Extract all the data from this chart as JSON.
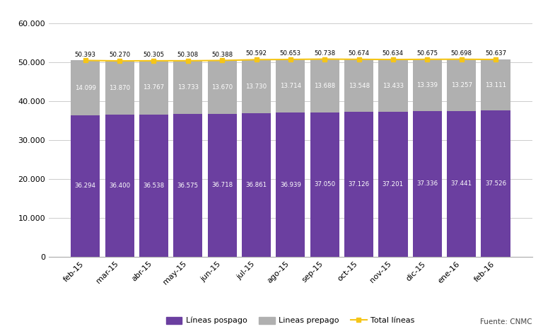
{
  "categories": [
    "feb-15",
    "mar-15",
    "abr-15",
    "may-15",
    "jun-15",
    "jul-15",
    "ago-15",
    "sep-15",
    "oct-15",
    "nov-15",
    "dic-15",
    "ene-16",
    "feb-16"
  ],
  "pospago": [
    36294,
    36400,
    36538,
    36575,
    36718,
    36861,
    36939,
    37050,
    37126,
    37201,
    37336,
    37441,
    37526
  ],
  "prepago": [
    14099,
    13870,
    13767,
    13733,
    13670,
    13730,
    13714,
    13688,
    13548,
    13433,
    13339,
    13257,
    13111
  ],
  "total": [
    50393,
    50270,
    50305,
    50308,
    50388,
    50592,
    50653,
    50738,
    50674,
    50634,
    50675,
    50698,
    50637
  ],
  "pospago_labels": [
    "36.294",
    "36.400",
    "36.538",
    "36.575",
    "36.718",
    "36.861",
    "36.939",
    "37.050",
    "37.126",
    "37.201",
    "37.336",
    "37.441",
    "37.526"
  ],
  "prepago_labels": [
    "14.099",
    "13.870",
    "13.767",
    "13.733",
    "13.670",
    "13.730",
    "13.714",
    "13.688",
    "13.548",
    "13.433",
    "13.339",
    "13.257",
    "13.111"
  ],
  "total_labels": [
    "50.393",
    "50.270",
    "50.305",
    "50.308",
    "50.388",
    "50.592",
    "50.653",
    "50.738",
    "50.674",
    "50.634",
    "50.675",
    "50.698",
    "50.637"
  ],
  "color_pospago": "#6B3FA0",
  "color_prepago": "#B0B0B0",
  "color_total_line": "#F5C518",
  "color_total_marker": "#F5C518",
  "ylim": [
    0,
    60000
  ],
  "yticks": [
    0,
    10000,
    20000,
    30000,
    40000,
    50000,
    60000
  ],
  "ytick_labels": [
    "0",
    "10.000",
    "20.000",
    "30.000",
    "40.000",
    "50.000",
    "60.000"
  ],
  "background_color": "#FFFFFF",
  "grid_color": "#CCCCCC",
  "legend_labels": [
    "Líneas pospago",
    "Lineas prepago",
    "Total líneas"
  ],
  "source_text": "Fuente: CNMC",
  "bar_width": 0.85
}
